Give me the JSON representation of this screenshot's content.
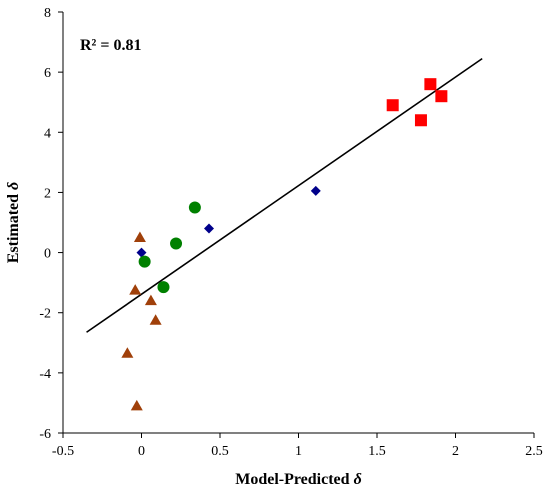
{
  "chart_data": {
    "type": "scatter",
    "title": "",
    "xlabel": "Model-Predicted δ",
    "ylabel": "Estimated δ",
    "xlim": [
      -0.5,
      2.5
    ],
    "ylim": [
      -6,
      8
    ],
    "x_ticks": [
      -0.5,
      0,
      0.5,
      1,
      1.5,
      2,
      2.5
    ],
    "x_tick_labels": [
      "-0.5",
      "0",
      "0.5",
      "1",
      "1.5",
      "2",
      "2.5"
    ],
    "y_ticks": [
      -6,
      -4,
      -2,
      0,
      2,
      4,
      6,
      8
    ],
    "y_tick_labels": [
      "-6",
      "-4",
      "-2",
      "0",
      "2",
      "4",
      "6",
      "8"
    ],
    "grid": false,
    "legend": "none",
    "annotation": "R² = 0.81",
    "series": [
      {
        "marker": "diamond",
        "color": "#00008b",
        "points": [
          [
            0.0,
            0.0
          ],
          [
            0.43,
            0.8
          ],
          [
            1.11,
            2.05
          ]
        ]
      },
      {
        "marker": "circle",
        "color": "#008000",
        "points": [
          [
            0.02,
            -0.3
          ],
          [
            0.14,
            -1.15
          ],
          [
            0.22,
            0.3
          ],
          [
            0.34,
            1.5
          ]
        ]
      },
      {
        "marker": "triangle",
        "color": "#a0400a",
        "points": [
          [
            -0.01,
            0.5
          ],
          [
            -0.04,
            -1.25
          ],
          [
            0.06,
            -1.6
          ],
          [
            0.09,
            -2.25
          ],
          [
            -0.09,
            -3.35
          ],
          [
            -0.03,
            -5.1
          ]
        ]
      },
      {
        "marker": "square",
        "color": "#ff0000",
        "points": [
          [
            1.6,
            4.9
          ],
          [
            1.78,
            4.4
          ],
          [
            1.84,
            5.6
          ],
          [
            1.91,
            5.2
          ]
        ]
      }
    ],
    "trendline": {
      "x": [
        -0.35,
        2.17
      ],
      "y": [
        -2.65,
        6.45
      ],
      "color": "#000000"
    }
  }
}
